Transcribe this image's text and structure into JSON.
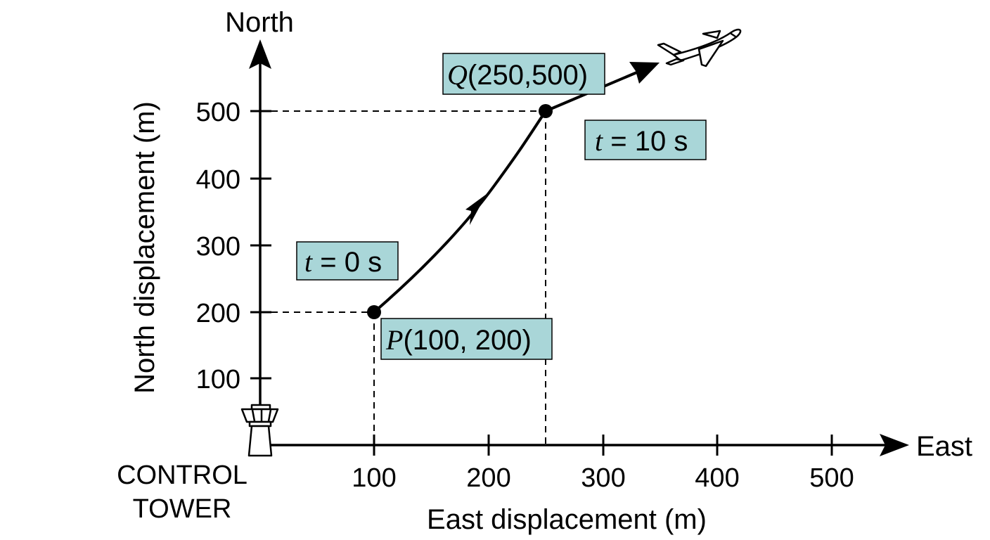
{
  "axes": {
    "north_label": "North",
    "east_label": "East",
    "y_title": "North displacement (m)",
    "x_title": "East displacement (m)",
    "y_ticks": [
      "100",
      "200",
      "300",
      "400",
      "500"
    ],
    "x_ticks": [
      "100",
      "200",
      "300",
      "400",
      "500"
    ]
  },
  "tower": {
    "line1": "CONTROL",
    "line2": "TOWER"
  },
  "points": {
    "P": {
      "letter": "P",
      "coords": "(100, 200)",
      "x": 100,
      "y": 200
    },
    "Q": {
      "letter": "Q",
      "coords": "(250,500)",
      "x": 250,
      "y": 500
    }
  },
  "times": {
    "start": {
      "var": "t",
      "rest": " = 0 s"
    },
    "end": {
      "var": "t",
      "rest": " = 10 s"
    }
  },
  "colors": {
    "label_box": "#a9d6d8",
    "ink": "#000000"
  },
  "icons": [
    "control-tower-icon",
    "airplane-icon"
  ]
}
